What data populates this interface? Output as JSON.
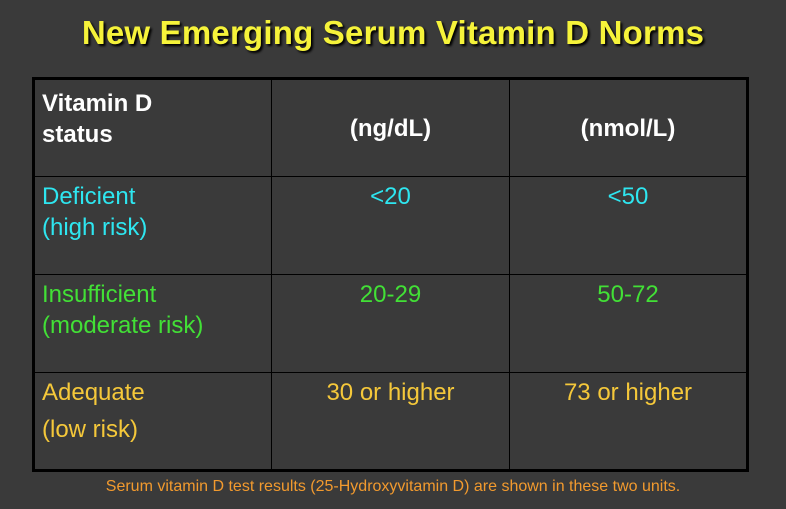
{
  "slide": {
    "title": "New Emerging Serum Vitamin D Norms",
    "footnote": "Serum vitamin D test results (25-Hydroxyvitamin D) are shown in these two units."
  },
  "table": {
    "headers": {
      "status_line1": "Vitamin D",
      "status_line2": "status",
      "unit1": "(ng/dL)",
      "unit2": "(nmol/L)"
    },
    "rows": [
      {
        "label_line1": "Deficient",
        "label_line2": "(high risk)",
        "ng": "<20",
        "nmol": "<50",
        "color": "#2ee6f0"
      },
      {
        "label_line1": "Insufficient",
        "label_line2": "(moderate risk)",
        "ng": "20-29",
        "nmol": "50-72",
        "color": "#42e036"
      },
      {
        "label_line1": "Adequate",
        "label_line2": "(low risk)",
        "ng": "30 or higher",
        "nmol": "73 or higher",
        "color": "#f5c83a"
      }
    ]
  },
  "colors": {
    "background": "#3a3a3a",
    "title": "#f6f33a",
    "header_text": "#ffffff",
    "footnote": "#f29a2e",
    "grid": "#000000"
  }
}
